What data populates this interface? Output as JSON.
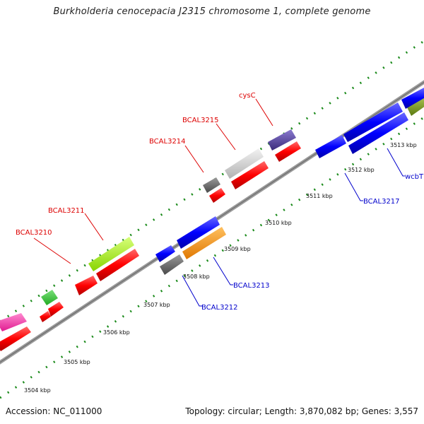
{
  "title": "Burkholderia cenocepacia J2315 chromosome 1, complete genome",
  "accession": "Accession: NC_011000",
  "topology": "Topology: circular; Length: 3,870,082 bp; Genes: 3,557",
  "colors": {
    "backbone": "#888888",
    "tick": "#1a8a1a",
    "label_forward": "#dd0000",
    "label_reverse": "#0000cc",
    "leader_forward": "#dd0000",
    "leader_reverse": "#0000cc"
  },
  "kbp_ticks": [
    "3504 kbp",
    "3505 kbp",
    "3506 kbp",
    "3507 kbp",
    "3508 kbp",
    "3509 kbp",
    "3510 kbp",
    "3511 kbp",
    "3512 kbp",
    "3513 kbp"
  ],
  "gene_labels": {
    "forward": [
      "BCAL3210",
      "BCAL3211",
      "BCAL3214",
      "BCAL3215",
      "cysC"
    ],
    "reverse": [
      "BCAL3212",
      "BCAL3213",
      "BCAL3217",
      "wcbT"
    ]
  },
  "feature_colors": [
    "red",
    "blue",
    "magenta",
    "green",
    "yellow-green",
    "gray",
    "light-gray",
    "dark-slate-blue",
    "orange",
    "olive"
  ]
}
